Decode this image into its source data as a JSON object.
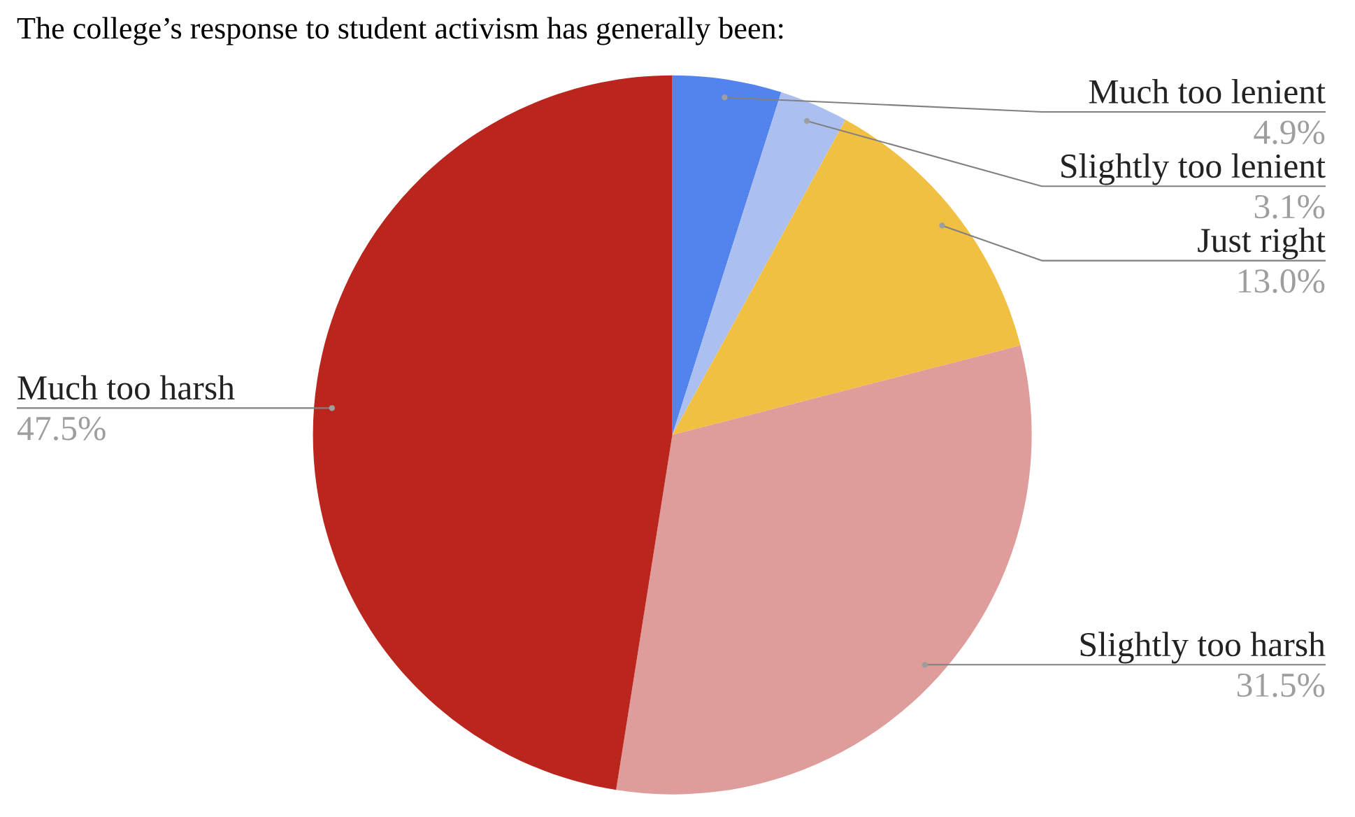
{
  "chart_data": {
    "type": "pie",
    "title": "The college’s response to student activism has generally been:",
    "categories": [
      "Much too lenient",
      "Slightly too lenient",
      "Just right",
      "Slightly too harsh",
      "Much too harsh"
    ],
    "values": [
      4.9,
      3.1,
      13.0,
      31.5,
      47.5
    ],
    "colors": [
      "#5383ec",
      "#abc0f0",
      "#f1bf42",
      "#de9c9b",
      "#ba261d"
    ],
    "value_labels": [
      "4.9%",
      "3.1%",
      "13.0%",
      "31.5%",
      "47.5%"
    ]
  }
}
